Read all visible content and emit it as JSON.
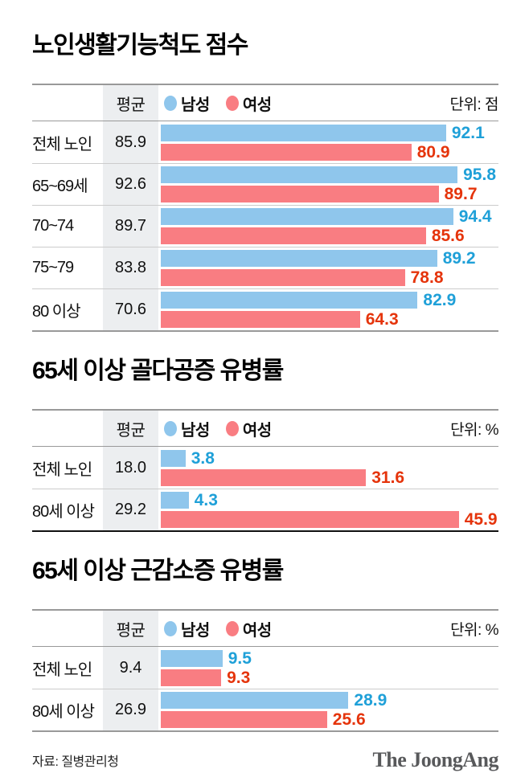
{
  "colors": {
    "male_bar": "#8FC6EC",
    "female_bar": "#F97D82",
    "male_value_text": "#1FA0D8",
    "female_value_text": "#E5340B",
    "avg_band_bg": "#ECEEF0",
    "rule_gray": "#999999",
    "row_separator": "#CCCCCC",
    "logo_gray": "#58595B"
  },
  "chart_data": [
    {
      "type": "bar",
      "orientation": "horizontal",
      "title": "노인생활기능척도 점수",
      "unit": "단위: 점",
      "avg_column_header": "평균",
      "legend": [
        "남성",
        "여성"
      ],
      "legend_position": "top",
      "grid": false,
      "xlim": [
        0,
        109
      ],
      "bottom_border_color": "#999999",
      "categories": [
        "전체 노인",
        "65~69세",
        "70~74",
        "75~79",
        "80 이상"
      ],
      "avg": [
        "85.9",
        "92.6",
        "89.7",
        "83.8",
        "70.6"
      ],
      "series": [
        {
          "name": "남성",
          "values": [
            "92.1",
            "95.8",
            "94.4",
            "89.2",
            "82.9"
          ]
        },
        {
          "name": "여성",
          "values": [
            "80.9",
            "89.7",
            "85.6",
            "78.8",
            "64.3"
          ]
        }
      ]
    },
    {
      "type": "bar",
      "orientation": "horizontal",
      "title": "65세 이상 골다공증 유병률",
      "unit": "단위: %",
      "avg_column_header": "평균",
      "legend": [
        "남성",
        "여성"
      ],
      "legend_position": "top",
      "grid": false,
      "xlim": [
        0,
        52
      ],
      "bottom_border_color": "#111111",
      "categories": [
        "전체 노인",
        "80세 이상"
      ],
      "avg": [
        "18.0",
        "29.2"
      ],
      "series": [
        {
          "name": "남성",
          "values": [
            "3.8",
            "4.3"
          ]
        },
        {
          "name": "여성",
          "values": [
            "31.6",
            "45.9"
          ]
        }
      ]
    },
    {
      "type": "bar",
      "orientation": "horizontal",
      "title": "65세 이상 근감소증 유병률",
      "unit": "단위: %",
      "avg_column_header": "평균",
      "legend": [
        "남성",
        "여성"
      ],
      "legend_position": "top",
      "grid": false,
      "xlim": [
        0,
        52
      ],
      "bottom_border_color": "#999999",
      "categories": [
        "전체 노인",
        "80세 이상"
      ],
      "avg": [
        "9.4",
        "26.9"
      ],
      "series": [
        {
          "name": "남성",
          "values": [
            "9.5",
            "28.9"
          ]
        },
        {
          "name": "여성",
          "values": [
            "9.3",
            "25.6"
          ]
        }
      ]
    }
  ],
  "footer": {
    "source": "자료: 질병관리청",
    "brand": "The JoongAng"
  }
}
